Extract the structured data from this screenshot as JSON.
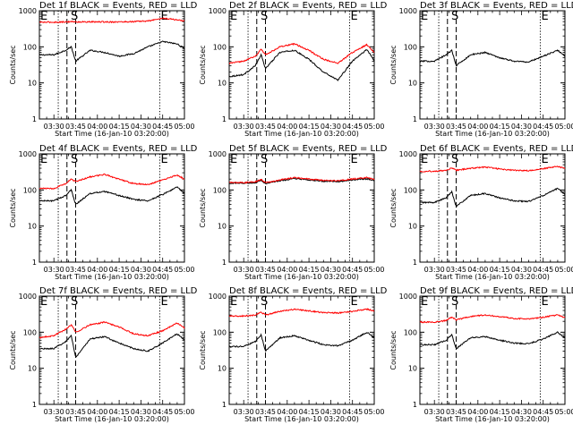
{
  "figure": {
    "background": "#ffffff",
    "colors": {
      "events": "#000000",
      "lld": "#ff0000",
      "axes": "#000000"
    }
  },
  "chart_data": [
    {
      "type": "line",
      "title": "Det 1f BLACK = Events, RED = LLD",
      "xlabel": "Start Time (16-Jan-10 03:20:00)",
      "ylabel": "Counts/sec",
      "x_ticks": [
        "03:30",
        "03:45",
        "04:00",
        "04:15",
        "04:30",
        "04:45",
        "05:00"
      ],
      "xlim": [
        "03:20",
        "05:00"
      ],
      "yscale": "log",
      "ylim": [
        1,
        1000
      ],
      "y_ticks": [
        "1",
        "10",
        "100",
        "1000"
      ],
      "markers": [
        {
          "label": "E",
          "x": "03:20"
        },
        {
          "label": "S",
          "x": "03:41"
        },
        {
          "label": "E",
          "x": "04:43"
        }
      ],
      "vlines": [
        {
          "x": "03:33",
          "style": "dotted"
        },
        {
          "x": "03:39",
          "style": "dashed"
        },
        {
          "x": "03:45",
          "style": "dashed"
        },
        {
          "x": "04:43",
          "style": "dotted"
        }
      ],
      "x": [
        "03:20",
        "03:30",
        "03:38",
        "03:42",
        "03:45",
        "03:55",
        "04:05",
        "04:15",
        "04:25",
        "04:35",
        "04:45",
        "04:55",
        "05:00"
      ],
      "series": [
        {
          "name": "Events",
          "color": "#000000",
          "values": [
            60,
            60,
            80,
            100,
            40,
            80,
            70,
            55,
            65,
            100,
            140,
            120,
            90
          ]
        },
        {
          "name": "LLD",
          "color": "#ff0000",
          "values": [
            480,
            480,
            490,
            500,
            490,
            490,
            490,
            490,
            500,
            520,
            620,
            560,
            520
          ]
        }
      ]
    },
    {
      "type": "line",
      "title": "Det 2f BLACK = Events, RED = LLD",
      "xlabel": "Start Time (16-Jan-10 03:20:00)",
      "ylabel": "Counts/sec",
      "x_ticks": [
        "03:30",
        "03:45",
        "04:00",
        "04:15",
        "04:30",
        "04:45",
        "05:00"
      ],
      "xlim": [
        "03:20",
        "05:00"
      ],
      "yscale": "log",
      "ylim": [
        1,
        1000
      ],
      "y_ticks": [
        "1",
        "10",
        "100",
        "1000"
      ],
      "markers": [
        {
          "label": "E",
          "x": "03:20"
        },
        {
          "label": "S",
          "x": "03:41"
        },
        {
          "label": "E",
          "x": "04:43"
        }
      ],
      "vlines": [
        {
          "x": "03:33",
          "style": "dotted"
        },
        {
          "x": "03:39",
          "style": "dashed"
        },
        {
          "x": "03:45",
          "style": "dashed"
        },
        {
          "x": "04:43",
          "style": "dotted"
        }
      ],
      "x": [
        "03:20",
        "03:30",
        "03:38",
        "03:42",
        "03:45",
        "03:55",
        "04:05",
        "04:15",
        "04:25",
        "04:35",
        "04:45",
        "04:55",
        "05:00"
      ],
      "series": [
        {
          "name": "Events",
          "color": "#000000",
          "values": [
            15,
            17,
            30,
            60,
            25,
            70,
            80,
            45,
            20,
            12,
            40,
            85,
            40
          ]
        },
        {
          "name": "LLD",
          "color": "#ff0000",
          "values": [
            35,
            40,
            55,
            85,
            60,
            100,
            120,
            80,
            45,
            35,
            70,
            115,
            70
          ]
        }
      ]
    },
    {
      "type": "line",
      "title": "Det 3f BLACK = Events, RED = LLD",
      "xlabel": "Start Time (16-Jan-10 03:20:00)",
      "ylabel": "Counts/sec",
      "x_ticks": [
        "03:30",
        "03:45",
        "04:00",
        "04:15",
        "04:30",
        "04:45",
        "05:00"
      ],
      "xlim": [
        "03:20",
        "05:00"
      ],
      "yscale": "log",
      "ylim": [
        1,
        1000
      ],
      "y_ticks": [
        "1",
        "10",
        "100",
        "1000"
      ],
      "markers": [
        {
          "label": "E",
          "x": "03:20"
        },
        {
          "label": "S",
          "x": "03:41"
        },
        {
          "label": "E",
          "x": "04:43"
        }
      ],
      "vlines": [
        {
          "x": "03:33",
          "style": "dotted"
        },
        {
          "x": "03:39",
          "style": "dashed"
        },
        {
          "x": "03:45",
          "style": "dashed"
        },
        {
          "x": "04:43",
          "style": "dotted"
        }
      ],
      "x": [
        "03:20",
        "03:30",
        "03:38",
        "03:42",
        "03:45",
        "03:55",
        "04:05",
        "04:15",
        "04:25",
        "04:35",
        "04:45",
        "04:55",
        "05:00"
      ],
      "series": [
        {
          "name": "Events",
          "color": "#000000",
          "values": [
            40,
            40,
            60,
            80,
            30,
            60,
            70,
            50,
            40,
            38,
            55,
            80,
            55
          ]
        }
      ]
    },
    {
      "type": "line",
      "title": "Det 4f BLACK = Events, RED = LLD",
      "xlabel": "Start Time (16-Jan-10 03:20:00)",
      "ylabel": "Counts/sec",
      "x_ticks": [
        "03:30",
        "03:45",
        "04:00",
        "04:15",
        "04:30",
        "04:45",
        "05:00"
      ],
      "xlim": [
        "03:20",
        "05:00"
      ],
      "yscale": "log",
      "ylim": [
        1,
        1000
      ],
      "y_ticks": [
        "1",
        "10",
        "100",
        "1000"
      ],
      "markers": [
        {
          "label": "E",
          "x": "03:20"
        },
        {
          "label": "S",
          "x": "03:41"
        },
        {
          "label": "E",
          "x": "04:43"
        }
      ],
      "vlines": [
        {
          "x": "03:33",
          "style": "dotted"
        },
        {
          "x": "03:39",
          "style": "dashed"
        },
        {
          "x": "03:45",
          "style": "dashed"
        },
        {
          "x": "04:43",
          "style": "dotted"
        }
      ],
      "x": [
        "03:20",
        "03:30",
        "03:38",
        "03:42",
        "03:45",
        "03:55",
        "04:05",
        "04:15",
        "04:25",
        "04:35",
        "04:45",
        "04:55",
        "05:00"
      ],
      "series": [
        {
          "name": "Events",
          "color": "#000000",
          "values": [
            50,
            50,
            70,
            100,
            40,
            80,
            90,
            70,
            55,
            50,
            75,
            120,
            80
          ]
        },
        {
          "name": "LLD",
          "color": "#ff0000",
          "values": [
            110,
            110,
            150,
            200,
            170,
            230,
            270,
            200,
            150,
            140,
            190,
            260,
            200
          ]
        }
      ]
    },
    {
      "type": "line",
      "title": "Det 5f BLACK = Events, RED = LLD",
      "xlabel": "Start Time (16-Jan-10 03:20:00)",
      "ylabel": "Counts/sec",
      "x_ticks": [
        "03:30",
        "03:45",
        "04:00",
        "04:15",
        "04:30",
        "04:45",
        "05:00"
      ],
      "xlim": [
        "03:20",
        "05:00"
      ],
      "yscale": "log",
      "ylim": [
        1,
        1000
      ],
      "y_ticks": [
        "1",
        "10",
        "100",
        "1000"
      ],
      "markers": [
        {
          "label": "E",
          "x": "03:20"
        },
        {
          "label": "S",
          "x": "03:41"
        },
        {
          "label": "E",
          "x": "04:43"
        }
      ],
      "vlines": [
        {
          "x": "03:33",
          "style": "dotted"
        },
        {
          "x": "03:39",
          "style": "dashed"
        },
        {
          "x": "03:45",
          "style": "dashed"
        },
        {
          "x": "04:43",
          "style": "dotted"
        }
      ],
      "x": [
        "03:20",
        "03:30",
        "03:38",
        "03:42",
        "03:45",
        "03:55",
        "04:05",
        "04:15",
        "04:25",
        "04:35",
        "04:45",
        "04:55",
        "05:00"
      ],
      "series": [
        {
          "name": "Events",
          "color": "#000000",
          "values": [
            155,
            155,
            160,
            185,
            150,
            180,
            205,
            190,
            175,
            170,
            190,
            205,
            185
          ]
        },
        {
          "name": "LLD",
          "color": "#ff0000",
          "values": [
            160,
            160,
            170,
            195,
            160,
            190,
            220,
            200,
            185,
            180,
            200,
            220,
            195
          ]
        }
      ]
    },
    {
      "type": "line",
      "title": "Det 6f BLACK = Events, RED = LLD",
      "xlabel": "Start Time (16-Jan-10 03:20:00)",
      "ylabel": "Counts/sec",
      "x_ticks": [
        "03:30",
        "03:45",
        "04:00",
        "04:15",
        "04:30",
        "04:45",
        "05:00"
      ],
      "xlim": [
        "03:20",
        "05:00"
      ],
      "yscale": "log",
      "ylim": [
        1,
        1000
      ],
      "y_ticks": [
        "1",
        "10",
        "100",
        "1000"
      ],
      "markers": [
        {
          "label": "E",
          "x": "03:20"
        },
        {
          "label": "S",
          "x": "03:41"
        },
        {
          "label": "E",
          "x": "04:43"
        }
      ],
      "vlines": [
        {
          "x": "03:33",
          "style": "dotted"
        },
        {
          "x": "03:39",
          "style": "dashed"
        },
        {
          "x": "03:45",
          "style": "dashed"
        },
        {
          "x": "04:43",
          "style": "dotted"
        }
      ],
      "x": [
        "03:20",
        "03:30",
        "03:38",
        "03:42",
        "03:45",
        "03:55",
        "04:05",
        "04:15",
        "04:25",
        "04:35",
        "04:45",
        "04:55",
        "05:00"
      ],
      "series": [
        {
          "name": "Events",
          "color": "#000000",
          "values": [
            45,
            45,
            60,
            90,
            35,
            70,
            80,
            60,
            50,
            48,
            70,
            110,
            75
          ]
        },
        {
          "name": "LLD",
          "color": "#ff0000",
          "values": [
            330,
            330,
            350,
            400,
            350,
            400,
            430,
            380,
            350,
            340,
            390,
            450,
            400
          ]
        }
      ]
    },
    {
      "type": "line",
      "title": "Det 7f BLACK = Events, RED = LLD",
      "xlabel": "Start Time (16-Jan-10 03:20:00)",
      "ylabel": "Counts/sec",
      "x_ticks": [
        "03:30",
        "03:45",
        "04:00",
        "04:15",
        "04:30",
        "04:45",
        "05:00"
      ],
      "xlim": [
        "03:20",
        "05:00"
      ],
      "yscale": "log",
      "ylim": [
        1,
        1000
      ],
      "y_ticks": [
        "1",
        "10",
        "100",
        "1000"
      ],
      "markers": [
        {
          "label": "E",
          "x": "03:20"
        },
        {
          "label": "S",
          "x": "03:41"
        },
        {
          "label": "E",
          "x": "04:43"
        }
      ],
      "vlines": [
        {
          "x": "03:33",
          "style": "dotted"
        },
        {
          "x": "03:39",
          "style": "dashed"
        },
        {
          "x": "03:45",
          "style": "dashed"
        },
        {
          "x": "04:43",
          "style": "dotted"
        }
      ],
      "x": [
        "03:20",
        "03:30",
        "03:38",
        "03:42",
        "03:45",
        "03:55",
        "04:05",
        "04:15",
        "04:25",
        "04:35",
        "04:45",
        "04:55",
        "05:00"
      ],
      "series": [
        {
          "name": "Events",
          "color": "#000000",
          "values": [
            35,
            35,
            55,
            80,
            20,
            65,
            75,
            50,
            35,
            30,
            50,
            90,
            60
          ]
        },
        {
          "name": "LLD",
          "color": "#ff0000",
          "values": [
            70,
            80,
            120,
            160,
            100,
            160,
            190,
            140,
            90,
            80,
            110,
            180,
            130
          ]
        }
      ]
    },
    {
      "type": "line",
      "title": "Det 8f BLACK = Events, RED = LLD",
      "xlabel": "Start Time (16-Jan-10 03:20:00)",
      "ylabel": "Counts/sec",
      "x_ticks": [
        "03:30",
        "03:45",
        "04:00",
        "04:15",
        "04:30",
        "04:45",
        "05:00"
      ],
      "xlim": [
        "03:20",
        "05:00"
      ],
      "yscale": "log",
      "ylim": [
        1,
        1000
      ],
      "y_ticks": [
        "1",
        "10",
        "100",
        "1000"
      ],
      "markers": [
        {
          "label": "E",
          "x": "03:20"
        },
        {
          "label": "S",
          "x": "03:41"
        },
        {
          "label": "E",
          "x": "04:43"
        }
      ],
      "vlines": [
        {
          "x": "03:33",
          "style": "dotted"
        },
        {
          "x": "03:39",
          "style": "dashed"
        },
        {
          "x": "03:45",
          "style": "dashed"
        },
        {
          "x": "04:43",
          "style": "dotted"
        }
      ],
      "x": [
        "03:20",
        "03:30",
        "03:38",
        "03:42",
        "03:45",
        "03:55",
        "04:05",
        "04:15",
        "04:25",
        "04:35",
        "04:45",
        "04:55",
        "05:00"
      ],
      "series": [
        {
          "name": "Events",
          "color": "#000000",
          "values": [
            40,
            40,
            55,
            85,
            30,
            70,
            80,
            60,
            45,
            42,
            60,
            100,
            70
          ]
        },
        {
          "name": "LLD",
          "color": "#ff0000",
          "values": [
            280,
            280,
            300,
            360,
            300,
            380,
            430,
            390,
            350,
            340,
            380,
            440,
            380
          ]
        }
      ]
    },
    {
      "type": "line",
      "title": "Det 9f BLACK = Events, RED = LLD",
      "xlabel": "Start Time (16-Jan-10 03:20:00)",
      "ylabel": "Counts/sec",
      "x_ticks": [
        "03:30",
        "03:45",
        "04:00",
        "04:15",
        "04:30",
        "04:45",
        "05:00"
      ],
      "xlim": [
        "03:20",
        "05:00"
      ],
      "yscale": "log",
      "ylim": [
        1,
        1000
      ],
      "y_ticks": [
        "1",
        "10",
        "100",
        "1000"
      ],
      "markers": [
        {
          "label": "E",
          "x": "03:20"
        },
        {
          "label": "S",
          "x": "03:41"
        },
        {
          "label": "E",
          "x": "04:43"
        }
      ],
      "vlines": [
        {
          "x": "03:33",
          "style": "dotted"
        },
        {
          "x": "03:39",
          "style": "dashed"
        },
        {
          "x": "03:45",
          "style": "dashed"
        },
        {
          "x": "04:43",
          "style": "dotted"
        }
      ],
      "x": [
        "03:20",
        "03:30",
        "03:38",
        "03:42",
        "03:45",
        "03:55",
        "04:05",
        "04:15",
        "04:25",
        "04:35",
        "04:45",
        "04:55",
        "05:00"
      ],
      "series": [
        {
          "name": "Events",
          "color": "#000000",
          "values": [
            45,
            45,
            60,
            85,
            35,
            70,
            75,
            60,
            50,
            48,
            65,
            100,
            70
          ]
        },
        {
          "name": "LLD",
          "color": "#ff0000",
          "values": [
            190,
            190,
            210,
            260,
            220,
            270,
            300,
            270,
            240,
            230,
            260,
            300,
            250
          ]
        }
      ]
    }
  ]
}
